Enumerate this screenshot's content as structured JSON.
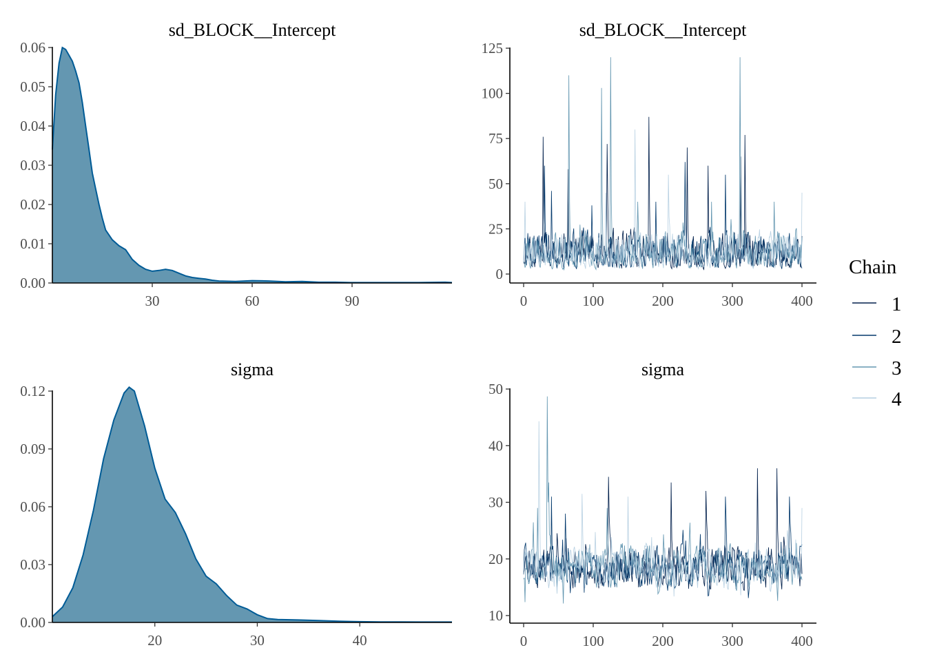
{
  "colors": {
    "density_fill": "#6497b1",
    "density_line": "#005b96",
    "chain1": "#011f4b",
    "chain2": "#03396c",
    "chain3": "#6497b1",
    "chain4": "#b3cde0"
  },
  "legend": {
    "title": "Chain",
    "items": [
      "1",
      "2",
      "3",
      "4"
    ]
  },
  "chart_data": [
    {
      "id": "dens_sd",
      "type": "area",
      "title": "sd_BLOCK__Intercept",
      "xlim": [
        0,
        120
      ],
      "ylim": [
        0,
        0.06
      ],
      "xticks": [
        30,
        60,
        90
      ],
      "xtick_labels": [
        "30",
        "60",
        "90"
      ],
      "yticks": [
        0,
        0.01,
        0.02,
        0.03,
        0.04,
        0.05,
        0.06
      ],
      "ytick_labels": [
        "0.00",
        "0.01",
        "0.02",
        "0.03",
        "0.04",
        "0.05",
        "0.06"
      ],
      "x": [
        0,
        1,
        2,
        3,
        4,
        5,
        6,
        7,
        8,
        9,
        10,
        11,
        12,
        13,
        14,
        15,
        16,
        18,
        20,
        22,
        24,
        26,
        28,
        30,
        32,
        34,
        36,
        38,
        40,
        42,
        44,
        46,
        48,
        50,
        55,
        60,
        65,
        70,
        75,
        80,
        85,
        90,
        100,
        110,
        118,
        120
      ],
      "y": [
        0.034,
        0.048,
        0.056,
        0.06,
        0.0595,
        0.058,
        0.0565,
        0.054,
        0.051,
        0.046,
        0.04,
        0.034,
        0.028,
        0.024,
        0.02,
        0.0165,
        0.0135,
        0.011,
        0.0095,
        0.0085,
        0.006,
        0.0045,
        0.0035,
        0.003,
        0.0032,
        0.0035,
        0.0032,
        0.0025,
        0.0018,
        0.0014,
        0.0012,
        0.001,
        0.0007,
        0.0005,
        0.0004,
        0.0006,
        0.0005,
        0.0003,
        0.0004,
        0.0002,
        0.0002,
        0.0001,
        0.0001,
        0.0001,
        0.0002,
        0.0001
      ]
    },
    {
      "id": "trace_sd",
      "type": "line",
      "title": "sd_BLOCK__Intercept",
      "xlim": [
        0,
        400
      ],
      "ylim": [
        0,
        125
      ],
      "xticks": [
        0,
        100,
        200,
        300,
        400
      ],
      "xtick_labels": [
        "0",
        "100",
        "200",
        "300",
        "400"
      ],
      "yticks": [
        0,
        25,
        50,
        75,
        100,
        125
      ],
      "ytick_labels": [
        "0",
        "25",
        "50",
        "75",
        "100",
        "125"
      ],
      "series": [
        {
          "name": "1",
          "spikes": [
            [
              28,
              76
            ],
            [
              64,
              58
            ],
            [
              120,
              72
            ],
            [
              180,
              87
            ],
            [
              235,
              70
            ],
            [
              265,
              60
            ],
            [
              312,
              65
            ],
            [
              318,
              77
            ]
          ]
        },
        {
          "name": "2",
          "spikes": [
            [
              30,
              60
            ],
            [
              40,
              46
            ],
            [
              98,
              38
            ],
            [
              190,
              40
            ],
            [
              232,
              62
            ],
            [
              290,
              55
            ]
          ]
        },
        {
          "name": "3",
          "spikes": [
            [
              65,
              110
            ],
            [
              112,
              103
            ],
            [
              125,
              120
            ],
            [
              164,
              40
            ],
            [
              270,
              40
            ],
            [
              311,
              120
            ],
            [
              360,
              40
            ]
          ]
        },
        {
          "name": "4",
          "spikes": [
            [
              2,
              40
            ],
            [
              118,
              45
            ],
            [
              160,
              80
            ],
            [
              208,
              55
            ],
            [
              400,
              45
            ]
          ]
        }
      ]
    },
    {
      "id": "dens_sigma",
      "type": "area",
      "title": "sigma",
      "xlim": [
        10,
        49
      ],
      "ylim": [
        0,
        0.12
      ],
      "xticks": [
        20,
        30,
        40
      ],
      "xtick_labels": [
        "20",
        "30",
        "40"
      ],
      "yticks": [
        0,
        0.03,
        0.06,
        0.09,
        0.12
      ],
      "ytick_labels": [
        "0.00",
        "0.03",
        "0.06",
        "0.09",
        "0.12"
      ],
      "x": [
        10,
        11,
        12,
        13,
        14,
        15,
        16,
        17,
        17.5,
        18,
        19,
        20,
        21,
        22,
        23,
        24,
        25,
        26,
        27,
        28,
        29,
        30,
        31,
        32,
        34,
        36,
        38,
        40,
        42,
        44,
        46,
        48,
        49
      ],
      "y": [
        0.003,
        0.008,
        0.018,
        0.035,
        0.058,
        0.085,
        0.105,
        0.119,
        0.122,
        0.12,
        0.102,
        0.08,
        0.064,
        0.057,
        0.046,
        0.033,
        0.024,
        0.02,
        0.014,
        0.009,
        0.007,
        0.004,
        0.002,
        0.0015,
        0.0013,
        0.001,
        0.0006,
        0.0004,
        0.0003,
        0.0003,
        0.0002,
        0.0002,
        0.0002
      ]
    },
    {
      "id": "trace_sigma",
      "type": "line",
      "title": "sigma",
      "xlim": [
        0,
        400
      ],
      "ylim": [
        10,
        50
      ],
      "xticks": [
        0,
        100,
        200,
        300,
        400
      ],
      "xtick_labels": [
        "0",
        "100",
        "200",
        "300",
        "400"
      ],
      "yticks": [
        10,
        20,
        30,
        40,
        50
      ],
      "ytick_labels": [
        "10",
        "20",
        "30",
        "40",
        "50"
      ],
      "series": [
        {
          "name": "1",
          "spikes": [
            [
              336,
              36
            ],
            [
              364,
              36
            ],
            [
              122,
              34.5
            ],
            [
              212,
              33.5
            ],
            [
              262,
              32
            ]
          ]
        },
        {
          "name": "2",
          "spikes": [
            [
              290,
              31
            ],
            [
              382,
              31
            ],
            [
              60,
              28
            ],
            [
              40,
              31
            ]
          ]
        },
        {
          "name": "3",
          "spikes": [
            [
              34,
              48.7
            ],
            [
              36,
              33.5
            ],
            [
              20,
              29
            ],
            [
              120,
              29
            ]
          ]
        },
        {
          "name": "4",
          "spikes": [
            [
              22,
              44.3
            ],
            [
              84,
              31.5
            ],
            [
              150,
              31
            ],
            [
              400,
              29
            ]
          ]
        }
      ]
    }
  ]
}
